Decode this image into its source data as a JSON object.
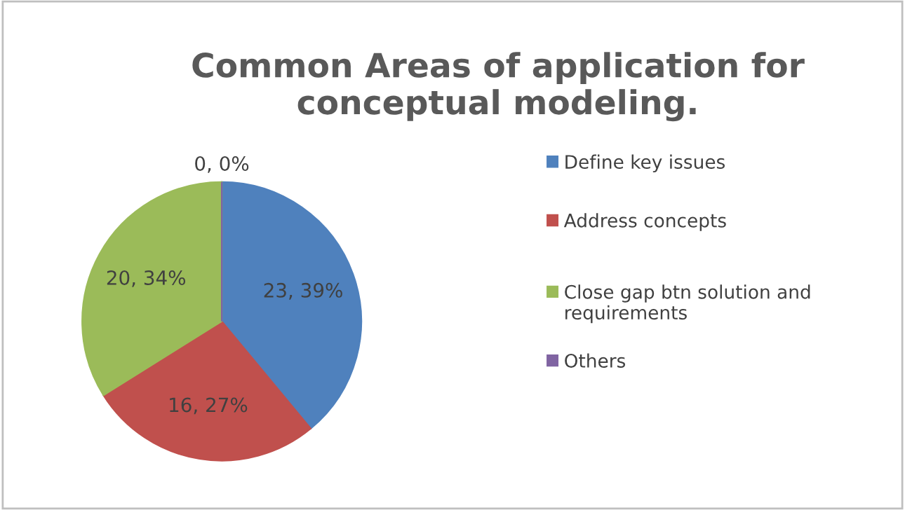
{
  "chart_data": {
    "type": "pie",
    "title": "Common Areas of application for conceptual modeling.",
    "categories": [
      "Define key issues",
      "Address concepts",
      "Close gap btn solution and requirements",
      "Others"
    ],
    "values": [
      23,
      16,
      20,
      0
    ],
    "colors": [
      "#4f81bd",
      "#c0504d",
      "#9bbb59",
      "#8064a2"
    ],
    "value_labels": [
      "23, 39%",
      "16, 27%",
      "20, 34%",
      "0, 0%"
    ],
    "legend": "right"
  }
}
